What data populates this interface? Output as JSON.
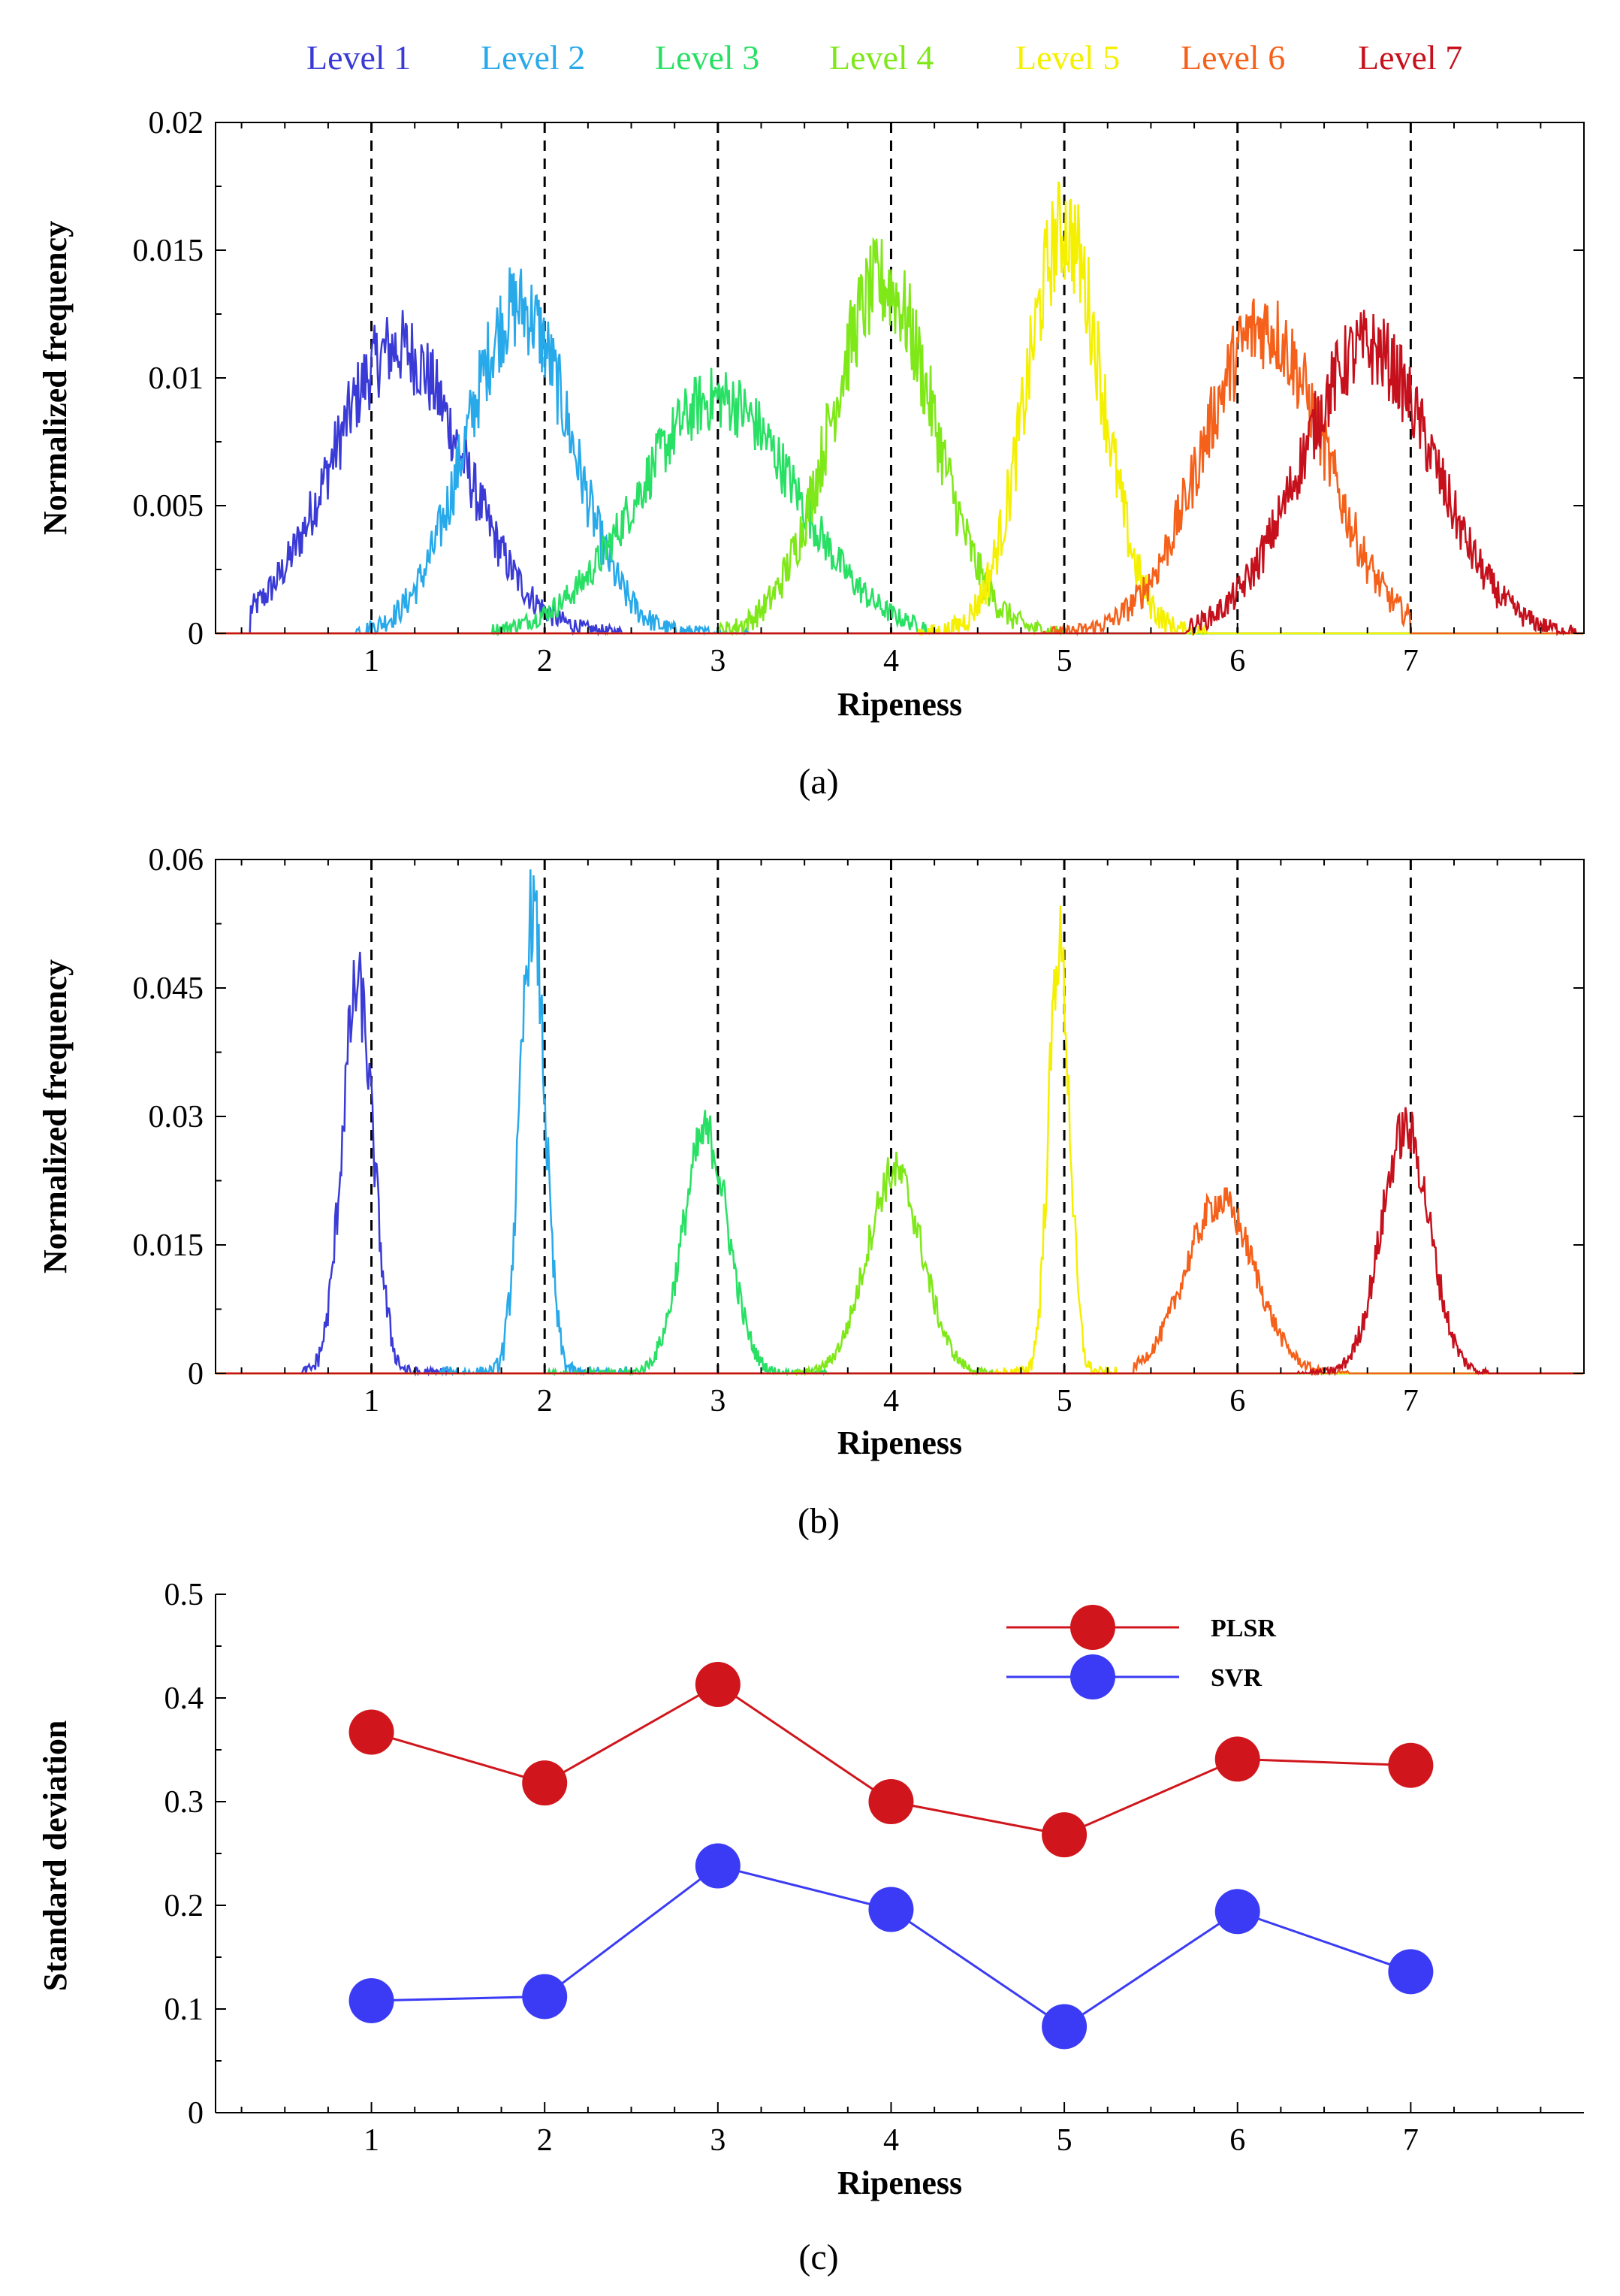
{
  "legend_top": [
    {
      "label": "Level 1",
      "color": "#3a3ad6"
    },
    {
      "label": "Level 2",
      "color": "#28a9ea"
    },
    {
      "label": "Level 3",
      "color": "#28e064"
    },
    {
      "label": "Level 4",
      "color": "#7fe818"
    },
    {
      "label": "Level 5",
      "color": "#f4f000"
    },
    {
      "label": "Level 6",
      "color": "#f5601a"
    },
    {
      "label": "Level 7",
      "color": "#c6101c"
    }
  ],
  "chart_data": [
    {
      "id": "a",
      "type": "line",
      "caption": "(a)",
      "xlabel": "Ripeness",
      "ylabel": "Normalized frequency",
      "xlim": [
        0.1,
        8.0
      ],
      "ylim": [
        0,
        0.02
      ],
      "xticks": [
        "1",
        "2",
        "3",
        "4",
        "5",
        "6",
        "7"
      ],
      "yticks": [
        "0",
        "0.005",
        "0.01",
        "0.015",
        "0.02"
      ],
      "reference_lines_x": [
        1,
        2,
        3,
        4,
        5,
        6,
        7
      ],
      "series": [
        {
          "name": "Level 1",
          "color": "#3a3ad6",
          "peak_x": 1.15,
          "peak_y": 0.0112,
          "spread": 0.38,
          "range": [
            0.3,
            2.45
          ]
        },
        {
          "name": "Level 2",
          "color": "#28a9ea",
          "peak_x": 1.85,
          "peak_y": 0.0128,
          "spread": 0.3,
          "range": [
            0.9,
            3.2
          ]
        },
        {
          "name": "Level 3",
          "color": "#28e064",
          "peak_x": 3.0,
          "peak_y": 0.0092,
          "spread": 0.45,
          "range": [
            1.7,
            4.2
          ]
        },
        {
          "name": "Level 4",
          "color": "#7fe818",
          "peak_x": 3.95,
          "peak_y": 0.0137,
          "spread": 0.3,
          "range": [
            3.0,
            5.0
          ]
        },
        {
          "name": "Level 5",
          "color": "#f4f000",
          "peak_x": 5.0,
          "peak_y": 0.0158,
          "spread": 0.22,
          "range": [
            4.15,
            5.85
          ]
        },
        {
          "name": "Level 6",
          "color": "#f5601a",
          "peak_x": 6.15,
          "peak_y": 0.012,
          "spread": 0.35,
          "range": [
            4.85,
            7.0
          ]
        },
        {
          "name": "Level 7",
          "color": "#c6101c",
          "peak_x": 6.75,
          "peak_y": 0.0112,
          "spread": 0.38,
          "range": [
            5.7,
            7.95
          ]
        }
      ]
    },
    {
      "id": "b",
      "type": "line",
      "caption": "(b)",
      "xlabel": "Ripeness",
      "ylabel": "Normalized frequency",
      "xlim": [
        0.1,
        8.0
      ],
      "ylim": [
        0,
        0.06
      ],
      "xticks": [
        "1",
        "2",
        "3",
        "4",
        "5",
        "6",
        "7"
      ],
      "yticks": [
        "0",
        "0.015",
        "0.03",
        "0.045",
        "0.06"
      ],
      "reference_lines_x": [
        1,
        2,
        3,
        4,
        5,
        6,
        7
      ],
      "series": [
        {
          "name": "Level 1",
          "color": "#3a3ad6",
          "peak_x": 0.92,
          "peak_y": 0.045,
          "spread": 0.09,
          "range": [
            0.6,
            1.45
          ]
        },
        {
          "name": "Level 2",
          "color": "#28a9ea",
          "peak_x": 1.93,
          "peak_y": 0.054,
          "spread": 0.07,
          "range": [
            1.4,
            2.5
          ]
        },
        {
          "name": "Level 3",
          "color": "#28e064",
          "peak_x": 2.93,
          "peak_y": 0.028,
          "spread": 0.13,
          "range": [
            2.0,
            3.65
          ]
        },
        {
          "name": "Level 4",
          "color": "#7fe818",
          "peak_x": 4.02,
          "peak_y": 0.0235,
          "spread": 0.16,
          "range": [
            3.4,
            4.6
          ]
        },
        {
          "name": "Level 5",
          "color": "#f4f000",
          "peak_x": 4.97,
          "peak_y": 0.05,
          "spread": 0.06,
          "range": [
            4.6,
            5.3
          ]
        },
        {
          "name": "Level 6",
          "color": "#f5601a",
          "peak_x": 5.9,
          "peak_y": 0.02,
          "spread": 0.2,
          "range": [
            5.4,
            6.65
          ]
        },
        {
          "name": "Level 7",
          "color": "#c6101c",
          "peak_x": 6.97,
          "peak_y": 0.0285,
          "spread": 0.14,
          "range": [
            6.35,
            7.45
          ]
        }
      ]
    },
    {
      "id": "c",
      "type": "line",
      "caption": "(c)",
      "xlabel": "Ripeness",
      "ylabel": "Standard deviation",
      "xlim": [
        0.1,
        8.0
      ],
      "ylim": [
        0,
        0.5
      ],
      "xticks": [
        "1",
        "2",
        "3",
        "4",
        "5",
        "6",
        "7"
      ],
      "yticks": [
        "0",
        "0.1",
        "0.2",
        "0.3",
        "0.4",
        "0.5"
      ],
      "x": [
        1,
        2,
        3,
        4,
        5,
        6,
        7
      ],
      "series": [
        {
          "name": "PLSR",
          "color": "#d0161c",
          "values": [
            0.367,
            0.318,
            0.413,
            0.3,
            0.268,
            0.341,
            0.335
          ]
        },
        {
          "name": "SVR",
          "color": "#3b3bf5",
          "values": [
            0.108,
            0.112,
            0.238,
            0.196,
            0.083,
            0.194,
            0.136
          ]
        }
      ],
      "legend": "top-right"
    }
  ]
}
